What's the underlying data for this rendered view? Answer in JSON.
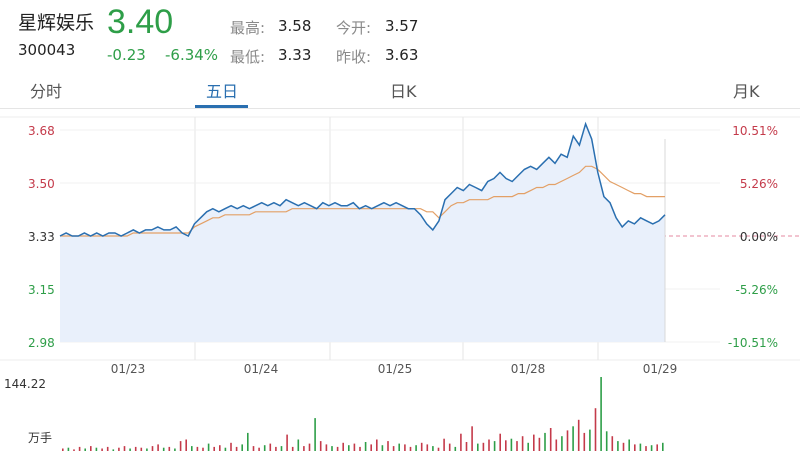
{
  "stock": {
    "name": "星辉娱乐",
    "code": "300043",
    "price": "3.40",
    "change": "-0.23",
    "change_pct": "-6.34%",
    "high_label": "最高:",
    "high": "3.58",
    "low_label": "最低:",
    "low": "3.33",
    "open_label": "今开:",
    "open": "3.57",
    "prev_label": "昨收:",
    "prev": "3.63"
  },
  "tabs": [
    {
      "label": "分时",
      "active": false
    },
    {
      "label": "五日",
      "active": true
    },
    {
      "label": "日K",
      "active": false
    },
    {
      "label": "月K",
      "active": false
    }
  ],
  "colors": {
    "up": "#c43a4a",
    "down": "#2e9e48",
    "line": "#2a6fb0",
    "avg": "#e3a066",
    "fill": "#e9f0fb"
  },
  "chart_data": [
    {
      "type": "area",
      "y_ticks_price": [
        "3.68",
        "3.50",
        "3.33",
        "3.15",
        "2.98"
      ],
      "y_ticks_pct": [
        "10.51%",
        "5.26%",
        "0.00%",
        "-5.26%",
        "-10.51%"
      ],
      "ylim": [
        2.98,
        3.68
      ],
      "baseline": 3.33,
      "x_labels": [
        "01/23",
        "01/24",
        "01/25",
        "01/28",
        "01/29"
      ],
      "series": [
        {
          "values": [
            3.33,
            3.34,
            3.33,
            3.33,
            3.34,
            3.33,
            3.34,
            3.33,
            3.34,
            3.34,
            3.33,
            3.34,
            3.35,
            3.34,
            3.35,
            3.35,
            3.36,
            3.35,
            3.35,
            3.36,
            3.34,
            3.33,
            3.37,
            3.39,
            3.41,
            3.42,
            3.41,
            3.42,
            3.43,
            3.42,
            3.43,
            3.42,
            3.43,
            3.44,
            3.43,
            3.44,
            3.43,
            3.45,
            3.44,
            3.43,
            3.44,
            3.43,
            3.42,
            3.44,
            3.43,
            3.44,
            3.43,
            3.43,
            3.44,
            3.42,
            3.43,
            3.42,
            3.43,
            3.44,
            3.43,
            3.44,
            3.43,
            3.42,
            3.42,
            3.4,
            3.37,
            3.35,
            3.38,
            3.45,
            3.47,
            3.49,
            3.48,
            3.5,
            3.49,
            3.48,
            3.51,
            3.52,
            3.54,
            3.52,
            3.51,
            3.53,
            3.55,
            3.56,
            3.55,
            3.57,
            3.59,
            3.57,
            3.6,
            3.59,
            3.66,
            3.63,
            3.7,
            3.65,
            3.54,
            3.46,
            3.44,
            3.39,
            3.36,
            3.38,
            3.37,
            3.39,
            3.38,
            3.37,
            3.38,
            3.4
          ]
        },
        {
          "values": [
            3.33,
            3.33,
            3.33,
            3.33,
            3.33,
            3.33,
            3.33,
            3.33,
            3.33,
            3.33,
            3.33,
            3.33,
            3.34,
            3.34,
            3.34,
            3.34,
            3.34,
            3.34,
            3.34,
            3.34,
            3.34,
            3.34,
            3.36,
            3.37,
            3.38,
            3.39,
            3.39,
            3.4,
            3.4,
            3.4,
            3.4,
            3.4,
            3.41,
            3.41,
            3.41,
            3.41,
            3.41,
            3.41,
            3.42,
            3.42,
            3.42,
            3.42,
            3.42,
            3.42,
            3.42,
            3.42,
            3.42,
            3.42,
            3.42,
            3.42,
            3.42,
            3.42,
            3.42,
            3.42,
            3.42,
            3.42,
            3.42,
            3.42,
            3.42,
            3.42,
            3.41,
            3.41,
            3.39,
            3.41,
            3.43,
            3.44,
            3.44,
            3.45,
            3.45,
            3.45,
            3.45,
            3.46,
            3.46,
            3.46,
            3.46,
            3.47,
            3.47,
            3.48,
            3.49,
            3.49,
            3.5,
            3.5,
            3.51,
            3.52,
            3.53,
            3.54,
            3.56,
            3.56,
            3.55,
            3.53,
            3.51,
            3.5,
            3.49,
            3.48,
            3.47,
            3.47,
            3.46,
            3.46,
            3.46,
            3.46
          ]
        }
      ]
    },
    {
      "type": "bar",
      "y_max_label": "144.22",
      "unit_label": "万手",
      "values": [
        3,
        4,
        2,
        5,
        3,
        6,
        4,
        3,
        5,
        2,
        4,
        6,
        3,
        5,
        4,
        3,
        6,
        8,
        4,
        5,
        3,
        12,
        14,
        6,
        5,
        4,
        9,
        5,
        7,
        4,
        10,
        5,
        8,
        22,
        6,
        4,
        7,
        9,
        5,
        6,
        20,
        5,
        14,
        6,
        9,
        40,
        12,
        8,
        6,
        5,
        10,
        7,
        9,
        5,
        11,
        8,
        14,
        7,
        12,
        6,
        9,
        8,
        5,
        7,
        10,
        8,
        6,
        4,
        15,
        9,
        5,
        21,
        11,
        30,
        9,
        10,
        14,
        12,
        21,
        13,
        15,
        12,
        18,
        10,
        20,
        16,
        22,
        28,
        14,
        18,
        25,
        30,
        38,
        22,
        26,
        52,
        90,
        24,
        18,
        12,
        10,
        14,
        8,
        9,
        6,
        7,
        8,
        10
      ],
      "ups": [
        1,
        0,
        1,
        1,
        0,
        1,
        0,
        1,
        1,
        0,
        1,
        1,
        0,
        1,
        1,
        0,
        1,
        1,
        0,
        1,
        0,
        1,
        1,
        0,
        1,
        1,
        0,
        1,
        1,
        0,
        1,
        1,
        0,
        0,
        1,
        1,
        0,
        1,
        1,
        0,
        1,
        1,
        0,
        1,
        1,
        0,
        1,
        1,
        0,
        1,
        1,
        0,
        1,
        1,
        0,
        1,
        1,
        0,
        1,
        1,
        0,
        1,
        1,
        0,
        1,
        1,
        0,
        1,
        1,
        1,
        0,
        1,
        1,
        1,
        0,
        1,
        1,
        0,
        1,
        1,
        0,
        1,
        1,
        0,
        1,
        1,
        0,
        1,
        1,
        0,
        1,
        0,
        1,
        1,
        0,
        1,
        0,
        0,
        1,
        0,
        1,
        0,
        1,
        0,
        1,
        0,
        1,
        0
      ]
    }
  ]
}
